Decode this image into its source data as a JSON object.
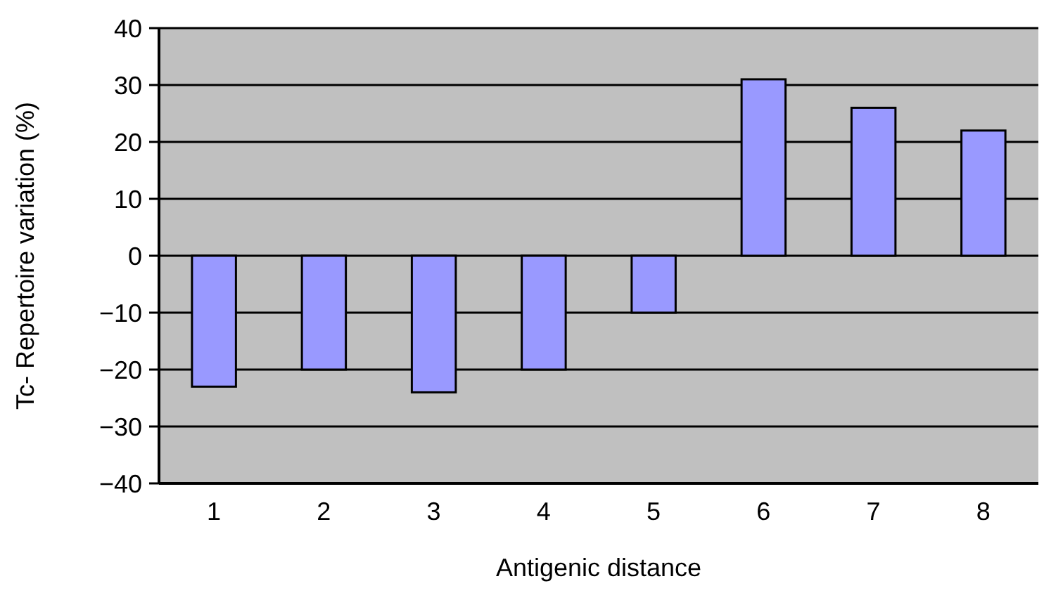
{
  "chart_data": {
    "type": "bar",
    "xlabel": "Antigenic distance",
    "ylabel": "Tc- Repertoire variation (%)",
    "categories": [
      "1",
      "2",
      "3",
      "4",
      "5",
      "6",
      "7",
      "8"
    ],
    "values": [
      -23,
      -20,
      -24,
      -20,
      -10,
      31,
      26,
      22
    ],
    "color": "#9999ff",
    "ylim": [
      -40,
      40
    ],
    "yticks": [
      {
        "value": -40,
        "label": "−40"
      },
      {
        "value": -30,
        "label": "−30"
      },
      {
        "value": -20,
        "label": "−20"
      },
      {
        "value": -10,
        "label": "−10"
      },
      0,
      10,
      20,
      30,
      40
    ],
    "grid": "y"
  }
}
